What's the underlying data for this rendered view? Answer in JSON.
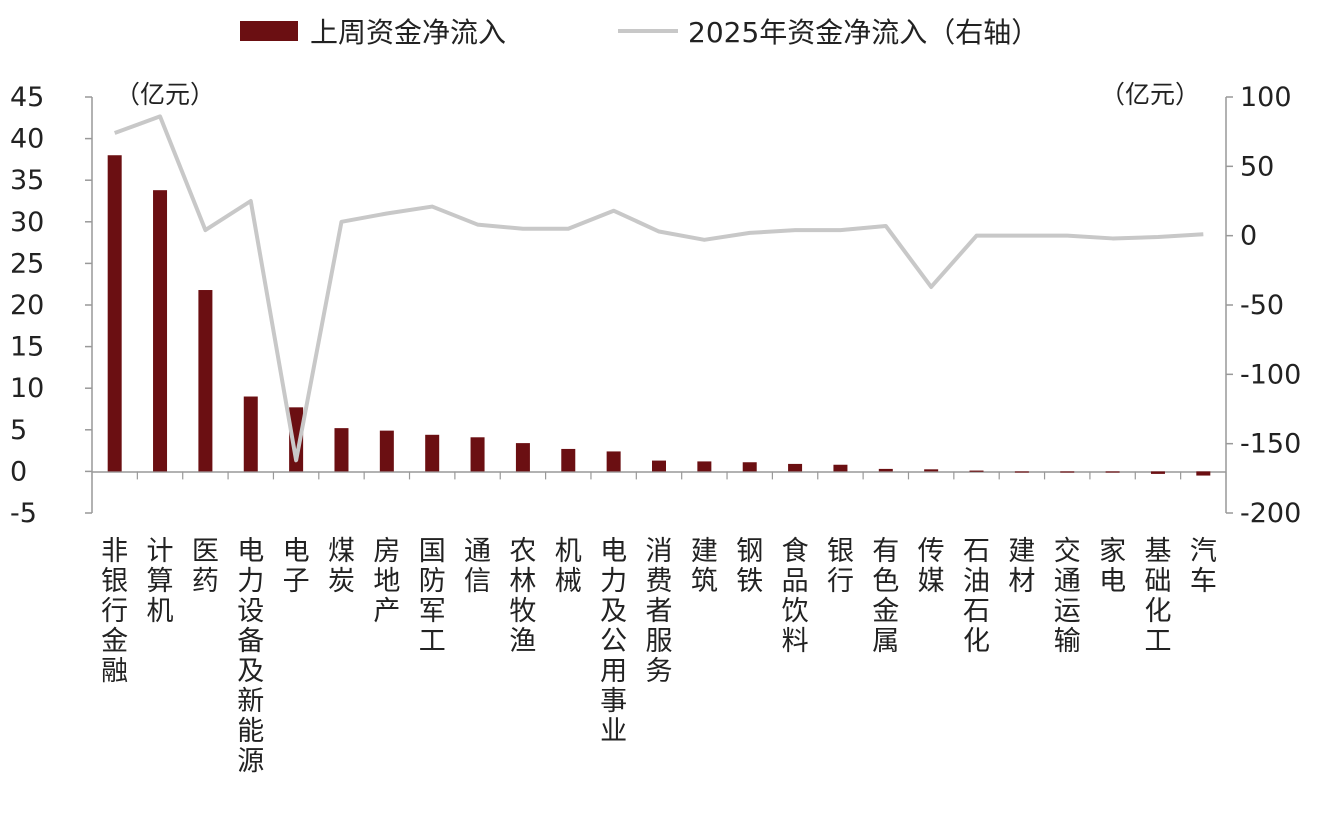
{
  "chart_data": {
    "type": "bar",
    "categories": [
      "非银行金融",
      "计算机",
      "医药",
      "电力设备及新能源",
      "电子",
      "煤炭",
      "房地产",
      "国防军工",
      "通信",
      "农林牧渔",
      "机械",
      "电力及公用事业",
      "消费者服务",
      "建筑",
      "钢铁",
      "食品饮料",
      "银行",
      "有色金属",
      "传媒",
      "石油石化",
      "建材",
      "交通运输",
      "家电",
      "基础化工",
      "汽车"
    ],
    "series": [
      {
        "name": "上周资金净流入",
        "type": "bar",
        "axis": "left",
        "values": [
          38.0,
          33.8,
          21.8,
          9.0,
          7.7,
          5.2,
          4.9,
          4.4,
          4.1,
          3.4,
          2.7,
          2.4,
          1.3,
          1.2,
          1.1,
          0.9,
          0.8,
          0.3,
          0.25,
          0.1,
          0.0,
          0.0,
          -0.1,
          -0.3,
          -0.5
        ],
        "color": "#6b0f12"
      },
      {
        "name": "2025年资金净流入（右轴）",
        "type": "line",
        "axis": "right",
        "values": [
          74,
          86,
          4,
          25,
          -162,
          10,
          16,
          21,
          8,
          5,
          5,
          18,
          3,
          -3,
          2,
          4,
          4,
          7,
          -37,
          0,
          0,
          0,
          -2,
          -1,
          1
        ],
        "color": "#c8c8c8"
      }
    ],
    "y_left": {
      "range": [
        -5,
        45
      ],
      "ticks": [
        "45",
        "40",
        "35",
        "30",
        "25",
        "20",
        "15",
        "10",
        "5",
        "0",
        "-5"
      ],
      "unit": "（亿元）"
    },
    "y_right": {
      "range": [
        -200,
        100
      ],
      "ticks": [
        "100",
        "50",
        "0",
        "-50",
        "-100",
        "-150",
        "-200"
      ],
      "unit": "（亿元）"
    },
    "legend_position": "top"
  }
}
